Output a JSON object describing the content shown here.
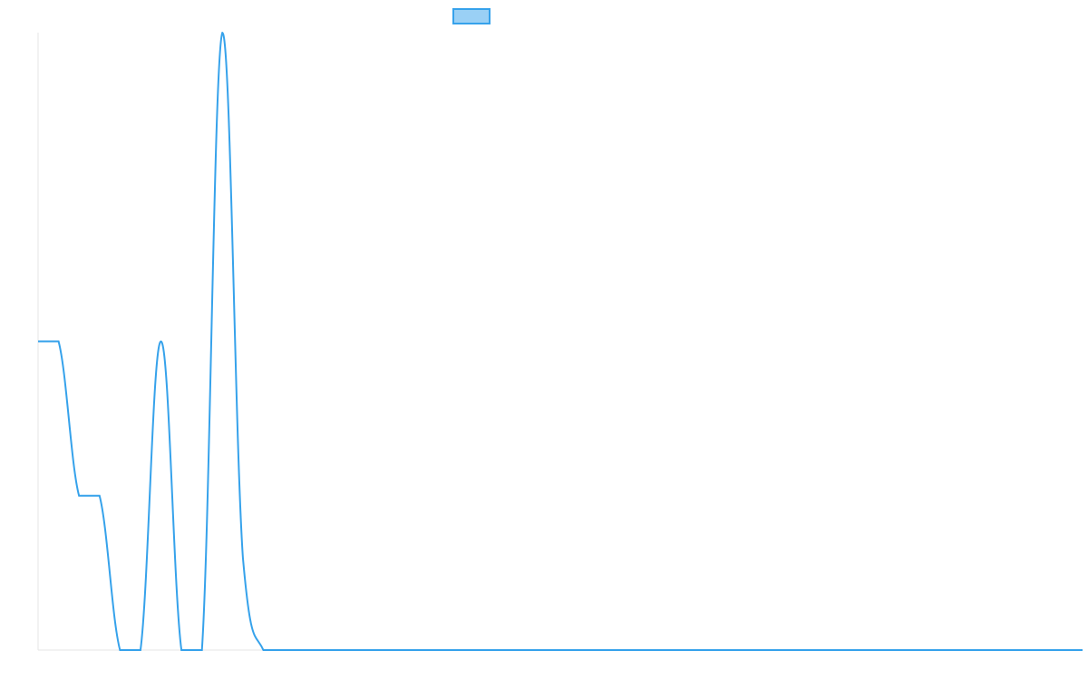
{
  "chart_data": {
    "type": "line",
    "title": "",
    "xlabel": "",
    "ylabel": "",
    "x": [
      0,
      1,
      2,
      3,
      4,
      5,
      6,
      7,
      8,
      9,
      10,
      11,
      12,
      13,
      14,
      15,
      16,
      17,
      18,
      19,
      20,
      21,
      22,
      23,
      24,
      25,
      26,
      27,
      28,
      29,
      30,
      31,
      32,
      33,
      34,
      35,
      36,
      37,
      38,
      39,
      40,
      41,
      42,
      43,
      44,
      45,
      46,
      47,
      48,
      49,
      50,
      51
    ],
    "series": [
      {
        "name": "",
        "color": "#36a2eb",
        "values": [
          1,
          1,
          0.5,
          0.5,
          0,
          0,
          1,
          0,
          0,
          2,
          0.3,
          0,
          0,
          0,
          0,
          0,
          0,
          0,
          0,
          0,
          0,
          0,
          0,
          0,
          0,
          0,
          0,
          0,
          0,
          0,
          0,
          0,
          0,
          0,
          0,
          0,
          0,
          0,
          0,
          0,
          0,
          0,
          0,
          0,
          0,
          0,
          0,
          0,
          0,
          0,
          0,
          0
        ]
      }
    ],
    "ylim": [
      0,
      2
    ],
    "grid": false,
    "legend_position": "top-center"
  }
}
